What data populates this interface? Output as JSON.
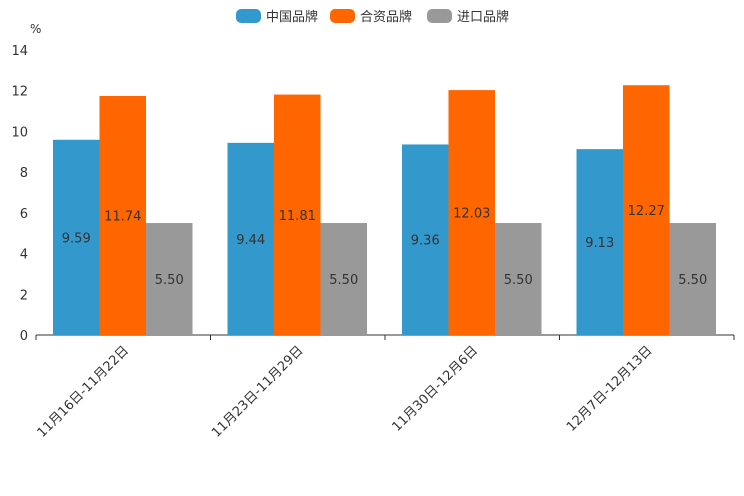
{
  "chart_data": {
    "type": "bar",
    "unit_label": "%",
    "categories": [
      "11月16日-11月22日",
      "11月23日-11月29日",
      "11月30日-12月6日",
      "12月7日-12月13日"
    ],
    "series": [
      {
        "name": "中国品牌",
        "color": "#3399CC",
        "values": [
          9.59,
          9.44,
          9.36,
          9.13
        ],
        "labels": [
          "9.59",
          "9.44",
          "9.36",
          "9.13"
        ]
      },
      {
        "name": "合资品牌",
        "color": "#FF6600",
        "values": [
          11.74,
          11.81,
          12.03,
          12.27
        ],
        "labels": [
          "11.74",
          "11.81",
          "12.03",
          "12.27"
        ]
      },
      {
        "name": "进口品牌",
        "color": "#999999",
        "values": [
          5.5,
          5.5,
          5.5,
          5.5
        ],
        "labels": [
          "5.50",
          "5.50",
          "5.50",
          "5.50"
        ]
      }
    ],
    "ylim": [
      0,
      14
    ],
    "yticks": [
      "0",
      "2",
      "4",
      "6",
      "8",
      "10",
      "12",
      "14"
    ],
    "legend_position": "top-center",
    "grid": false
  }
}
